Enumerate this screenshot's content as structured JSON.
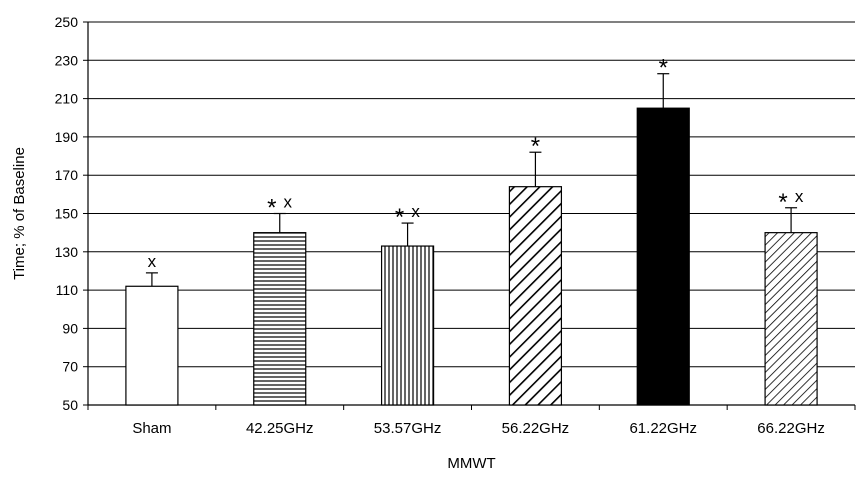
{
  "chart_data": {
    "type": "bar",
    "title": "",
    "xlabel": "MMWT",
    "ylabel": "Time; % of Baseline",
    "ylim": [
      50,
      250
    ],
    "yticks": [
      50,
      70,
      90,
      110,
      130,
      150,
      170,
      190,
      210,
      230,
      250
    ],
    "grid": true,
    "legend": "none",
    "categories": [
      "Sham",
      "42.25GHz",
      "53.57GHz",
      "56.22GHz",
      "61.22GHz",
      "66.22GHz"
    ],
    "values": [
      112,
      140,
      133,
      164,
      205,
      140
    ],
    "error_upper": [
      7,
      10,
      12,
      18,
      18,
      13
    ],
    "fill_patterns": [
      "white",
      "horizontal-lines",
      "vertical-lines",
      "diagonal-lines",
      "solid-black",
      "diagonal-lines-dense"
    ],
    "annotations": [
      {
        "category": "Sham",
        "marks": [
          "x"
        ]
      },
      {
        "category": "42.25GHz",
        "marks": [
          "*",
          "x"
        ]
      },
      {
        "category": "53.57GHz",
        "marks": [
          "*",
          "x"
        ]
      },
      {
        "category": "56.22GHz",
        "marks": [
          "*"
        ]
      },
      {
        "category": "61.22GHz",
        "marks": [
          "*"
        ]
      },
      {
        "category": "66.22GHz",
        "marks": [
          "*",
          "x"
        ]
      }
    ]
  }
}
